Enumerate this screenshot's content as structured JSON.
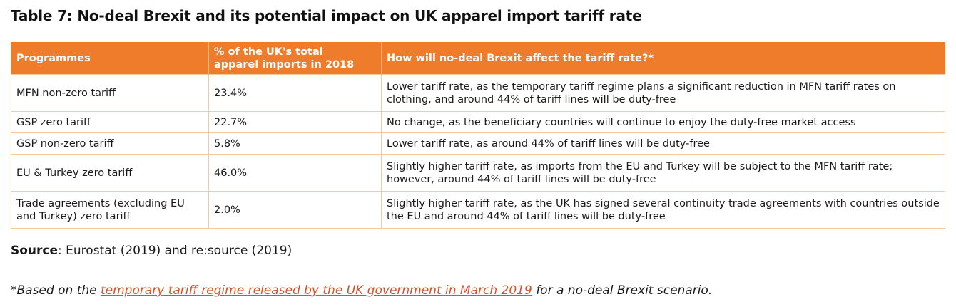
{
  "title": "Table 7: No-deal Brexit and its potential impact on UK apparel import tariff rate",
  "table": {
    "headers": {
      "programmes": "Programmes",
      "share_line1": "% of the UK's total",
      "share_line2": "apparel imports in 2018",
      "effect": "How will no-deal Brexit affect the tariff rate?*"
    },
    "rows": [
      {
        "programme": "MFN non-zero tariff",
        "share": "23.4%",
        "effect": "Lower tariff rate, as the temporary tariff regime plans a significant reduction in MFN tariff rates on clothing, and around 44% of tariff lines will be duty-free"
      },
      {
        "programme": "GSP zero tariff",
        "share": "22.7%",
        "effect": "No change, as the beneficiary countries will continue to enjoy the duty-free market access"
      },
      {
        "programme": "GSP non-zero tariff",
        "share": "5.8%",
        "effect": "Lower tariff rate, as around 44% of tariff lines will be duty-free"
      },
      {
        "programme": "EU & Turkey zero tariff",
        "share": "46.0%",
        "effect": "Slightly higher tariff rate, as imports from the EU and Turkey will be subject to the MFN tariff rate; however, around 44% of tariff lines will be duty-free"
      },
      {
        "programme": "Trade agreements (excluding EU and Turkey) zero tariff",
        "share": "2.0%",
        "effect": "Slightly higher tariff rate, as the UK has signed several continuity trade agreements with countries outside the EU and around 44% of tariff lines will be duty-free"
      }
    ]
  },
  "source": {
    "label": "Source",
    "text": ": Eurostat (2019) and re:source (2019)"
  },
  "footnote": {
    "prefix": "*Based on the ",
    "link_text": "temporary tariff regime released by the UK government in March 2019",
    "suffix": " for a no-deal Brexit scenario."
  },
  "colors": {
    "header_bg": "#ef7c2a",
    "header_text": "#ffffff",
    "link": "#d2542a",
    "cell_border": "#f0c8a4"
  }
}
